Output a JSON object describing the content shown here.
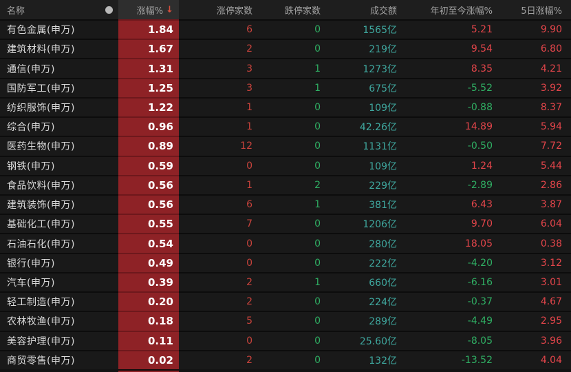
{
  "header": {
    "name": "名称",
    "dot_icon": "●",
    "change": "涨幅%",
    "sort_arrow": "↓",
    "limit_up": "涨停家数",
    "limit_down": "跌停家数",
    "turnover": "成交额",
    "ytd": "年初至今涨幅%",
    "d5": "5日涨幅%"
  },
  "colors": {
    "up_red": "#e2454a",
    "down_green": "#2fae63",
    "count_up_red": "#c9433c",
    "turnover_teal": "#3fa89f",
    "change_cell_bg": "#8e2226"
  },
  "rows": [
    {
      "name": "有色金属(申万)",
      "change": "1.84",
      "limit_up": "6",
      "limit_down": "0",
      "turnover": "1565亿",
      "ytd": "5.21",
      "d5": "9.90"
    },
    {
      "name": "建筑材料(申万)",
      "change": "1.67",
      "limit_up": "2",
      "limit_down": "0",
      "turnover": "219亿",
      "ytd": "9.54",
      "d5": "6.80"
    },
    {
      "name": "通信(申万)",
      "change": "1.31",
      "limit_up": "3",
      "limit_down": "1",
      "turnover": "1273亿",
      "ytd": "8.35",
      "d5": "4.21"
    },
    {
      "name": "国防军工(申万)",
      "change": "1.25",
      "limit_up": "3",
      "limit_down": "1",
      "turnover": "675亿",
      "ytd": "-5.52",
      "d5": "3.92"
    },
    {
      "name": "纺织服饰(申万)",
      "change": "1.22",
      "limit_up": "1",
      "limit_down": "0",
      "turnover": "109亿",
      "ytd": "-0.88",
      "d5": "8.37"
    },
    {
      "name": "综合(申万)",
      "change": "0.96",
      "limit_up": "1",
      "limit_down": "0",
      "turnover": "42.26亿",
      "ytd": "14.89",
      "d5": "5.94"
    },
    {
      "name": "医药生物(申万)",
      "change": "0.89",
      "limit_up": "12",
      "limit_down": "0",
      "turnover": "1131亿",
      "ytd": "-0.50",
      "d5": "7.72"
    },
    {
      "name": "钢铁(申万)",
      "change": "0.59",
      "limit_up": "0",
      "limit_down": "0",
      "turnover": "109亿",
      "ytd": "1.24",
      "d5": "5.44"
    },
    {
      "name": "食品饮料(申万)",
      "change": "0.56",
      "limit_up": "1",
      "limit_down": "2",
      "turnover": "229亿",
      "ytd": "-2.89",
      "d5": "2.86"
    },
    {
      "name": "建筑装饰(申万)",
      "change": "0.56",
      "limit_up": "6",
      "limit_down": "1",
      "turnover": "381亿",
      "ytd": "6.43",
      "d5": "3.87"
    },
    {
      "name": "基础化工(申万)",
      "change": "0.55",
      "limit_up": "7",
      "limit_down": "0",
      "turnover": "1206亿",
      "ytd": "9.70",
      "d5": "6.04"
    },
    {
      "name": "石油石化(申万)",
      "change": "0.54",
      "limit_up": "0",
      "limit_down": "0",
      "turnover": "280亿",
      "ytd": "18.05",
      "d5": "0.38"
    },
    {
      "name": "银行(申万)",
      "change": "0.49",
      "limit_up": "0",
      "limit_down": "0",
      "turnover": "222亿",
      "ytd": "-4.20",
      "d5": "3.12"
    },
    {
      "name": "汽车(申万)",
      "change": "0.39",
      "limit_up": "2",
      "limit_down": "1",
      "turnover": "660亿",
      "ytd": "-6.16",
      "d5": "3.01"
    },
    {
      "name": "轻工制造(申万)",
      "change": "0.20",
      "limit_up": "2",
      "limit_down": "0",
      "turnover": "224亿",
      "ytd": "-0.37",
      "d5": "4.67"
    },
    {
      "name": "农林牧渔(申万)",
      "change": "0.18",
      "limit_up": "5",
      "limit_down": "0",
      "turnover": "289亿",
      "ytd": "-4.49",
      "d5": "2.95"
    },
    {
      "name": "美容护理(申万)",
      "change": "0.11",
      "limit_up": "0",
      "limit_down": "0",
      "turnover": "25.60亿",
      "ytd": "-8.05",
      "d5": "3.96"
    },
    {
      "name": "商贸零售(申万)",
      "change": "0.02",
      "limit_up": "2",
      "limit_down": "0",
      "turnover": "132亿",
      "ytd": "-13.52",
      "d5": "4.04"
    }
  ]
}
